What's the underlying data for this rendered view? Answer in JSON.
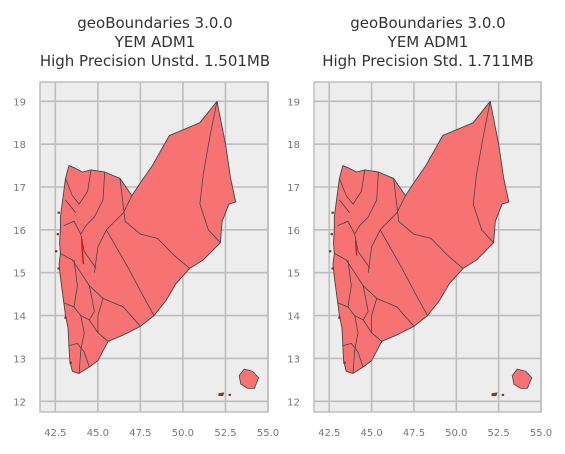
{
  "panels": [
    {
      "title_lines": [
        "geoBoundaries 3.0.0",
        "YEM ADM1",
        "High Precision Unstd. 1.501MB"
      ],
      "x_ticks": [
        "42.5",
        "45.0",
        "47.5",
        "50.0",
        "52.5",
        "55.0"
      ],
      "y_ticks": [
        "19",
        "18",
        "17",
        "16",
        "15",
        "14",
        "13",
        "12"
      ]
    },
    {
      "title_lines": [
        "geoBoundaries 3.0.0",
        "YEM ADM1",
        "High Precision Std. 1.711MB"
      ],
      "x_ticks": [
        "42.5",
        "45.0",
        "47.5",
        "50.0",
        "52.5",
        "55.0"
      ],
      "y_ticks": [
        "19",
        "18",
        "17",
        "16",
        "15",
        "14",
        "13",
        "12"
      ]
    }
  ],
  "colors": {
    "fill": "#f77373",
    "border": "#444444",
    "background": "#ededed",
    "grid": "#bdbdbd"
  }
}
